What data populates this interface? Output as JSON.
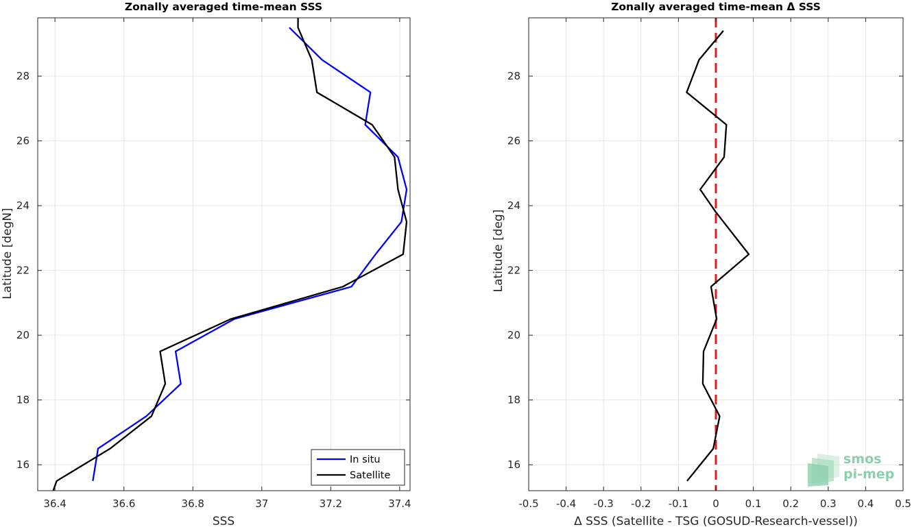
{
  "chart_data": [
    {
      "type": "line",
      "title": "Zonally averaged time-mean SSS",
      "xlabel": "SSS",
      "ylabel": "Latitude [degN]",
      "xlim": [
        36.35,
        37.43
      ],
      "ylim": [
        15.2,
        29.8
      ],
      "xticks": [
        "36.4",
        "36.6",
        "36.8",
        "37",
        "37.2",
        "37.4"
      ],
      "yticks": [
        "16",
        "18",
        "20",
        "22",
        "24",
        "26",
        "28"
      ],
      "grid": true,
      "legend": "bottom-right",
      "series": [
        {
          "name": "In situ",
          "color": "#0000ff",
          "points": [
            [
              36.51,
              15.5
            ],
            [
              36.525,
              16.5
            ],
            [
              36.665,
              17.5
            ],
            [
              36.765,
              18.5
            ],
            [
              36.75,
              19.5
            ],
            [
              36.92,
              20.5
            ],
            [
              37.26,
              21.5
            ],
            [
              37.33,
              22.5
            ],
            [
              37.405,
              23.5
            ],
            [
              37.42,
              24.5
            ],
            [
              37.395,
              25.5
            ],
            [
              37.3,
              26.5
            ],
            [
              37.315,
              27.5
            ],
            [
              37.175,
              28.5
            ],
            [
              37.08,
              29.5
            ]
          ]
        },
        {
          "name": "Satellite",
          "color": "#000000",
          "points": [
            [
              36.395,
              15.2
            ],
            [
              36.405,
              15.5
            ],
            [
              36.56,
              16.5
            ],
            [
              36.68,
              17.5
            ],
            [
              36.72,
              18.5
            ],
            [
              36.705,
              19.5
            ],
            [
              36.91,
              20.5
            ],
            [
              37.235,
              21.5
            ],
            [
              37.41,
              22.5
            ],
            [
              37.42,
              23.5
            ],
            [
              37.395,
              24.5
            ],
            [
              37.385,
              25.5
            ],
            [
              37.32,
              26.5
            ],
            [
              37.16,
              27.5
            ],
            [
              37.145,
              28.5
            ],
            [
              37.105,
              29.5
            ],
            [
              37.105,
              29.8
            ]
          ]
        }
      ]
    },
    {
      "type": "line",
      "title": "Zonally averaged time-mean Δ SSS",
      "xlabel": "Δ SSS (Satellite - TSG (GOSUD-Research-vessel))",
      "ylabel": "Latitude [deg]",
      "xlim": [
        -0.5,
        0.5
      ],
      "ylim": [
        15.2,
        29.8
      ],
      "xticks": [
        "-0.5",
        "-0.4",
        "-0.3",
        "-0.2",
        "-0.1",
        "0",
        "0.1",
        "0.2",
        "0.3",
        "0.4",
        "0.5"
      ],
      "yticks": [
        "16",
        "18",
        "20",
        "22",
        "24",
        "26",
        "28"
      ],
      "grid": true,
      "reference_line": {
        "x": 0,
        "color": "#e31a1c",
        "style": "dashed"
      },
      "series": [
        {
          "color": "#000000",
          "points": [
            [
              -0.077,
              15.5
            ],
            [
              -0.007,
              16.5
            ],
            [
              0.01,
              17.5
            ],
            [
              -0.035,
              18.5
            ],
            [
              -0.033,
              19.5
            ],
            [
              0.002,
              20.5
            ],
            [
              -0.013,
              21.5
            ],
            [
              0.088,
              22.5
            ],
            [
              0.0,
              23.8
            ],
            [
              -0.042,
              24.5
            ],
            [
              0.022,
              25.5
            ],
            [
              0.028,
              26.5
            ],
            [
              -0.078,
              27.5
            ],
            [
              -0.045,
              28.5
            ],
            [
              0.02,
              29.4
            ]
          ]
        }
      ]
    }
  ],
  "watermark": {
    "line1": "smos",
    "line2": "pi-mep"
  }
}
